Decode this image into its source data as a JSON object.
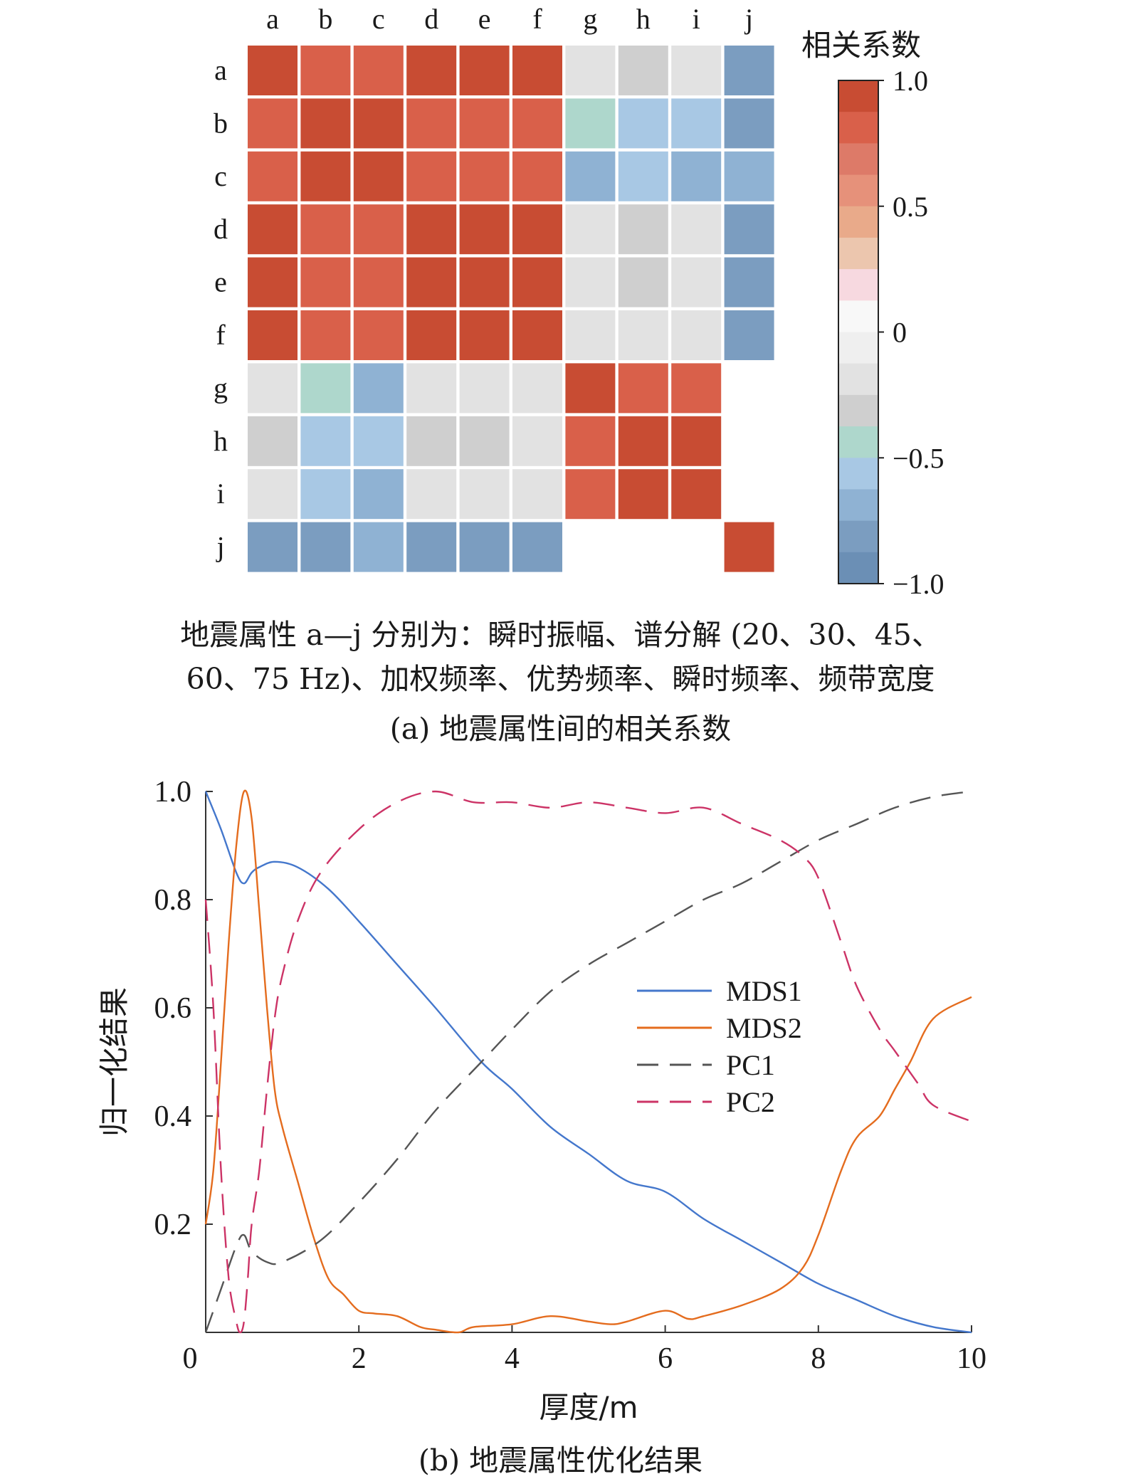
{
  "chart_data": [
    {
      "type": "heatmap",
      "row_labels": [
        "a",
        "b",
        "c",
        "d",
        "e",
        "f",
        "g",
        "h",
        "i",
        "j"
      ],
      "col_labels": [
        "a",
        "b",
        "c",
        "d",
        "e",
        "f",
        "g",
        "h",
        "i",
        "j"
      ],
      "values": [
        [
          0.95,
          0.85,
          0.85,
          0.95,
          0.95,
          0.95,
          -0.25,
          -0.35,
          -0.2,
          -0.8
        ],
        [
          0.85,
          0.95,
          0.95,
          0.85,
          0.85,
          0.85,
          -0.5,
          -0.6,
          -0.6,
          -0.8
        ],
        [
          0.85,
          0.95,
          0.95,
          0.85,
          0.85,
          0.85,
          -0.65,
          -0.6,
          -0.65,
          -0.7
        ],
        [
          0.95,
          0.85,
          0.85,
          0.95,
          0.95,
          0.95,
          -0.25,
          -0.35,
          -0.25,
          -0.8
        ],
        [
          0.95,
          0.85,
          0.85,
          0.95,
          0.95,
          0.95,
          -0.25,
          -0.35,
          -0.25,
          -0.8
        ],
        [
          0.95,
          0.85,
          0.85,
          0.95,
          0.95,
          0.95,
          -0.25,
          -0.2,
          -0.25,
          -0.8
        ],
        [
          -0.25,
          -0.5,
          -0.65,
          -0.25,
          -0.25,
          -0.25,
          0.95,
          0.85,
          0.85,
          null
        ],
        [
          -0.35,
          -0.6,
          -0.6,
          -0.35,
          -0.35,
          -0.2,
          0.85,
          0.95,
          0.95,
          null
        ],
        [
          -0.2,
          -0.6,
          -0.65,
          -0.25,
          -0.25,
          -0.25,
          0.85,
          0.95,
          0.95,
          null
        ],
        [
          -0.8,
          -0.8,
          -0.7,
          -0.8,
          -0.8,
          -0.8,
          null,
          null,
          null,
          0.95
        ]
      ],
      "colorbar": {
        "title": "相关系数",
        "range": [
          -1.0,
          1.0
        ],
        "tick_labels": [
          "1.0",
          "0.5",
          "0",
          "−0.5",
          "−1.0"
        ],
        "tick_values": [
          1.0,
          0.5,
          0,
          -0.5,
          -1.0
        ],
        "colors": [
          "#6b8fb5",
          "#7b9dc0",
          "#8fb2d3",
          "#a8c8e4",
          "#aed7cc",
          "#cfcfcf",
          "#e2e2e2",
          "#efefef",
          "#f8f8f8",
          "#f7d9e0",
          "#ecc6ae",
          "#e9aa8a",
          "#e6917a",
          "#dd7a68",
          "#d9604a",
          "#c84c33"
        ]
      },
      "note_lines": [
        "地震属性 a—j 分别为：瞬时振幅、谱分解 (20、30、45、",
        "60、75 Hz)、加权频率、优势频率、瞬时频率、频带宽度"
      ],
      "caption": "(a) 地震属性间的相关系数"
    },
    {
      "type": "line",
      "xlabel": "厚度/m",
      "ylabel": "归一化结果",
      "xlim": [
        0,
        10
      ],
      "ylim": [
        0,
        1.0
      ],
      "x_ticks": [
        0,
        2,
        4,
        6,
        8,
        10
      ],
      "y_ticks": [
        0,
        0.2,
        0.4,
        0.6,
        0.8,
        1.0
      ],
      "x_tick_labels": [
        "0",
        "2",
        "4",
        "6",
        "8",
        "10"
      ],
      "y_tick_labels": [
        "",
        "0.2",
        "0.4",
        "0.6",
        "0.8",
        "1.0"
      ],
      "legend_position": "center-right",
      "series": [
        {
          "name": "MDS1",
          "color": "#4477cc",
          "dash": "solid",
          "x": [
            0,
            0.2,
            0.4,
            0.5,
            0.6,
            0.7,
            0.9,
            1.2,
            1.6,
            2.0,
            2.5,
            3.0,
            3.6,
            4.0,
            4.5,
            5.0,
            5.5,
            6.0,
            6.5,
            7.0,
            7.5,
            8.0,
            8.5,
            9.0,
            9.5,
            10.0
          ],
          "y": [
            1.0,
            0.93,
            0.85,
            0.83,
            0.85,
            0.86,
            0.87,
            0.86,
            0.82,
            0.76,
            0.68,
            0.6,
            0.5,
            0.45,
            0.38,
            0.33,
            0.28,
            0.26,
            0.21,
            0.17,
            0.13,
            0.09,
            0.06,
            0.03,
            0.01,
            0.0
          ]
        },
        {
          "name": "MDS2",
          "color": "#e46c1e",
          "dash": "solid",
          "x": [
            0,
            0.1,
            0.2,
            0.3,
            0.4,
            0.5,
            0.6,
            0.7,
            0.8,
            0.9,
            1.0,
            1.2,
            1.4,
            1.6,
            1.8,
            2.0,
            2.2,
            2.5,
            2.8,
            3.0,
            3.3,
            3.5,
            4.0,
            4.5,
            5.0,
            5.3,
            5.5,
            6.0,
            6.3,
            6.5,
            7.0,
            7.5,
            7.8,
            8.0,
            8.3,
            8.5,
            8.8,
            9.0,
            9.2,
            9.5,
            10.0
          ],
          "y": [
            0.2,
            0.3,
            0.5,
            0.72,
            0.9,
            1.0,
            0.95,
            0.78,
            0.6,
            0.45,
            0.38,
            0.28,
            0.18,
            0.1,
            0.07,
            0.04,
            0.035,
            0.03,
            0.01,
            0.005,
            0.0,
            0.01,
            0.015,
            0.03,
            0.02,
            0.015,
            0.02,
            0.04,
            0.025,
            0.03,
            0.05,
            0.08,
            0.12,
            0.18,
            0.3,
            0.36,
            0.4,
            0.45,
            0.5,
            0.58,
            0.62
          ]
        },
        {
          "name": "PC1",
          "color": "#555555",
          "dash": "dashed",
          "x": [
            0,
            0.2,
            0.4,
            0.5,
            0.6,
            0.8,
            1.0,
            1.5,
            2.0,
            2.5,
            3.0,
            3.6,
            4.0,
            4.5,
            5.0,
            5.5,
            6.0,
            6.5,
            7.0,
            7.5,
            8.0,
            8.5,
            9.0,
            9.5,
            10.0
          ],
          "y": [
            0.0,
            0.08,
            0.16,
            0.18,
            0.15,
            0.13,
            0.13,
            0.17,
            0.24,
            0.32,
            0.41,
            0.5,
            0.56,
            0.63,
            0.68,
            0.72,
            0.76,
            0.8,
            0.83,
            0.87,
            0.91,
            0.94,
            0.97,
            0.99,
            1.0
          ]
        },
        {
          "name": "PC2",
          "color": "#cc3366",
          "dash": "dashed",
          "x": [
            0,
            0.1,
            0.2,
            0.3,
            0.4,
            0.45,
            0.5,
            0.55,
            0.6,
            0.7,
            0.8,
            0.9,
            1.0,
            1.2,
            1.5,
            2.0,
            2.5,
            3.0,
            3.5,
            4.0,
            4.5,
            5.0,
            5.5,
            6.0,
            6.5,
            7.0,
            7.5,
            7.8,
            8.0,
            8.3,
            8.5,
            8.8,
            9.0,
            9.3,
            9.5,
            10.0
          ],
          "y": [
            0.8,
            0.6,
            0.3,
            0.1,
            0.02,
            0.0,
            0.02,
            0.1,
            0.2,
            0.3,
            0.45,
            0.58,
            0.66,
            0.76,
            0.85,
            0.93,
            0.98,
            1.0,
            0.98,
            0.98,
            0.97,
            0.98,
            0.97,
            0.96,
            0.97,
            0.94,
            0.91,
            0.88,
            0.84,
            0.72,
            0.64,
            0.56,
            0.52,
            0.46,
            0.42,
            0.39
          ]
        }
      ],
      "caption": "(b) 地震属性优化结果"
    }
  ]
}
